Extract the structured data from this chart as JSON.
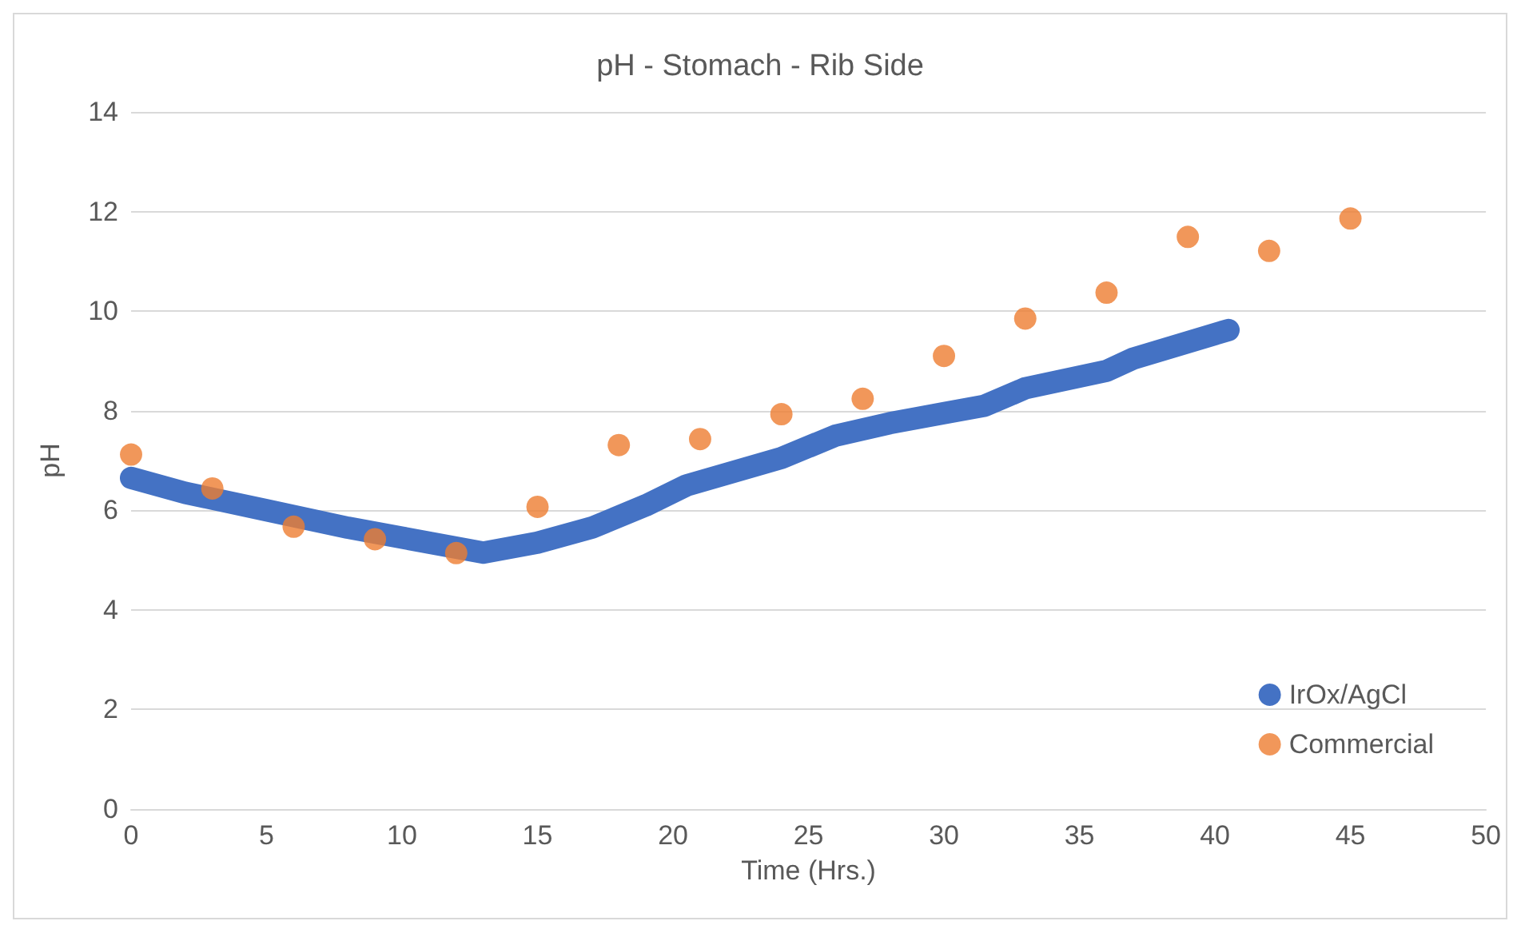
{
  "chart_data": {
    "type": "scatter",
    "title": "pH - Stomach - Rib Side",
    "xlabel": "Time (Hrs.)",
    "ylabel": "pH",
    "xlim": [
      0,
      50
    ],
    "xticks": [
      0,
      5,
      10,
      15,
      20,
      25,
      30,
      35,
      40,
      45,
      50
    ],
    "ylim": [
      0,
      14
    ],
    "yticks": [
      0,
      2,
      4,
      6,
      8,
      10,
      12,
      14
    ],
    "grid": "y",
    "legend": "bottom right",
    "series": [
      {
        "name": "IrOx/AgCl",
        "type": "line",
        "marker": "none",
        "color": "#4472c4",
        "x": [
          0,
          2,
          5,
          8,
          10,
          13,
          15,
          17,
          19,
          20.5,
          24,
          26,
          28,
          30,
          31.5,
          33,
          36,
          37,
          40.5
        ],
        "values": [
          6.65,
          6.35,
          6.0,
          5.65,
          5.45,
          5.15,
          5.35,
          5.65,
          6.1,
          6.5,
          7.05,
          7.5,
          7.75,
          7.95,
          8.1,
          8.45,
          8.8,
          9.05,
          9.62
        ]
      },
      {
        "name": "Commercial",
        "marker": "circle",
        "color": "#ed7d31",
        "x": [
          0,
          3,
          6,
          9,
          12,
          15,
          18,
          21,
          24,
          27,
          30,
          33,
          36,
          39,
          42,
          45
        ],
        "values": [
          7.12,
          6.44,
          5.67,
          5.42,
          5.14,
          6.07,
          7.31,
          7.43,
          7.93,
          8.24,
          9.1,
          9.85,
          10.37,
          11.49,
          11.21,
          11.86
        ]
      }
    ]
  }
}
